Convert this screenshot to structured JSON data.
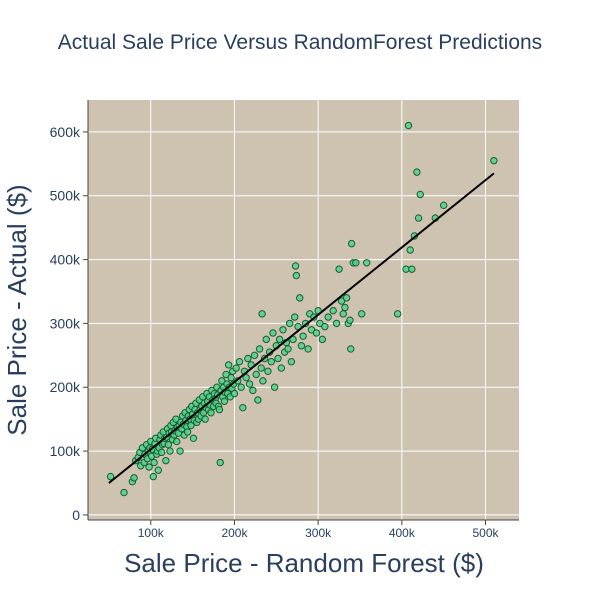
{
  "chart_data": {
    "type": "scatter",
    "title": "Actual Sale Price Versus RandomForest Predictions",
    "xlabel": "Sale Price - Random Forest ($)",
    "ylabel": "Sale Price - Actual ($)",
    "xlim": [
      25000,
      540000
    ],
    "ylim": [
      -8000,
      650000
    ],
    "xticks": [
      {
        "value": 100000,
        "label": "100k"
      },
      {
        "value": 200000,
        "label": "200k"
      },
      {
        "value": 300000,
        "label": "300k"
      },
      {
        "value": 400000,
        "label": "400k"
      },
      {
        "value": 500000,
        "label": "500k"
      }
    ],
    "yticks": [
      {
        "value": 0,
        "label": "0"
      },
      {
        "value": 100000,
        "label": "100k"
      },
      {
        "value": 200000,
        "label": "200k"
      },
      {
        "value": 300000,
        "label": "300k"
      },
      {
        "value": 400000,
        "label": "400k"
      },
      {
        "value": 500000,
        "label": "500k"
      },
      {
        "value": 600000,
        "label": "600k"
      }
    ],
    "grid": true,
    "legend": "none",
    "colors": {
      "plot_bg": "#cec3b1",
      "marker_fill": "#4dd387",
      "marker_edge": "#1c5a35",
      "line": "#000000",
      "grid": "#ffffff",
      "text": "#2a3f5f"
    },
    "series": [
      {
        "type": "scatter",
        "points": [
          [
            52000,
            60000
          ],
          [
            68000,
            35000
          ],
          [
            78000,
            52000
          ],
          [
            80000,
            58000
          ],
          [
            82000,
            85000
          ],
          [
            85000,
            90000
          ],
          [
            87000,
            98000
          ],
          [
            88000,
            77000
          ],
          [
            90000,
            105000
          ],
          [
            92000,
            82000
          ],
          [
            93000,
            95000
          ],
          [
            95000,
            110000
          ],
          [
            96000,
            88000
          ],
          [
            97000,
            100000
          ],
          [
            98000,
            75000
          ],
          [
            99000,
            105000
          ],
          [
            100000,
            115000
          ],
          [
            101000,
            92000
          ],
          [
            102000,
            103000
          ],
          [
            103000,
            60000
          ],
          [
            104000,
            82000
          ],
          [
            105000,
            112000
          ],
          [
            106000,
            120000
          ],
          [
            107000,
            95000
          ],
          [
            108000,
            100000
          ],
          [
            109000,
            70000
          ],
          [
            110000,
            105000
          ],
          [
            111000,
            118000
          ],
          [
            112000,
            125000
          ],
          [
            113000,
            98000
          ],
          [
            114000,
            110000
          ],
          [
            115000,
            130000
          ],
          [
            116000,
            112000
          ],
          [
            117000,
            120000
          ],
          [
            118000,
            85000
          ],
          [
            119000,
            122000
          ],
          [
            120000,
            135000
          ],
          [
            121000,
            110000
          ],
          [
            122000,
            128000
          ],
          [
            123000,
            100000
          ],
          [
            124000,
            140000
          ],
          [
            125000,
            130000
          ],
          [
            126000,
            118000
          ],
          [
            127000,
            145000
          ],
          [
            128000,
            125000
          ],
          [
            129000,
            132000
          ],
          [
            130000,
            150000
          ],
          [
            131000,
            115000
          ],
          [
            132000,
            138000
          ],
          [
            133000,
            128000
          ],
          [
            134000,
            140000
          ],
          [
            135000,
            100000
          ],
          [
            136000,
            145000
          ],
          [
            137000,
            135000
          ],
          [
            138000,
            155000
          ],
          [
            139000,
            142000
          ],
          [
            140000,
            125000
          ],
          [
            141000,
            160000
          ],
          [
            142000,
            148000
          ],
          [
            143000,
            138000
          ],
          [
            144000,
            130000
          ],
          [
            145000,
            155000
          ],
          [
            146000,
            165000
          ],
          [
            147000,
            150000
          ],
          [
            148000,
            140000
          ],
          [
            149000,
            170000
          ],
          [
            150000,
            158000
          ],
          [
            151000,
            120000
          ],
          [
            152000,
            148000
          ],
          [
            153000,
            165000
          ],
          [
            154000,
            175000
          ],
          [
            155000,
            145000
          ],
          [
            156000,
            160000
          ],
          [
            157000,
            150000
          ],
          [
            158000,
            180000
          ],
          [
            159000,
            165000
          ],
          [
            160000,
            155000
          ],
          [
            161000,
            170000
          ],
          [
            162000,
            185000
          ],
          [
            163000,
            160000
          ],
          [
            164000,
            175000
          ],
          [
            165000,
            150000
          ],
          [
            166000,
            168000
          ],
          [
            167000,
            190000
          ],
          [
            168000,
            178000
          ],
          [
            169000,
            165000
          ],
          [
            170000,
            185000
          ],
          [
            171000,
            172000
          ],
          [
            172000,
            160000
          ],
          [
            173000,
            195000
          ],
          [
            174000,
            180000
          ],
          [
            175000,
            170000
          ],
          [
            176000,
            190000
          ],
          [
            177000,
            182000
          ],
          [
            178000,
            175000
          ],
          [
            179000,
            200000
          ],
          [
            180000,
            188000
          ],
          [
            181000,
            170000
          ],
          [
            182000,
            165000
          ],
          [
            183000,
            82000
          ],
          [
            184000,
            195000
          ],
          [
            185000,
            210000
          ],
          [
            186000,
            185000
          ],
          [
            187000,
            200000
          ],
          [
            188000,
            178000
          ],
          [
            189000,
            192000
          ],
          [
            190000,
            220000
          ],
          [
            191000,
            205000
          ],
          [
            192000,
            190000
          ],
          [
            193000,
            235000
          ],
          [
            194000,
            200000
          ],
          [
            195000,
            185000
          ],
          [
            196000,
            215000
          ],
          [
            197000,
            198000
          ],
          [
            198000,
            225000
          ],
          [
            199000,
            205000
          ],
          [
            200000,
            190000
          ],
          [
            202000,
            230000
          ],
          [
            204000,
            210000
          ],
          [
            206000,
            240000
          ],
          [
            208000,
            200000
          ],
          [
            210000,
            168000
          ],
          [
            212000,
            225000
          ],
          [
            214000,
            215000
          ],
          [
            216000,
            245000
          ],
          [
            218000,
            205000
          ],
          [
            220000,
            235000
          ],
          [
            222000,
            195000
          ],
          [
            224000,
            250000
          ],
          [
            226000,
            220000
          ],
          [
            228000,
            180000
          ],
          [
            230000,
            260000
          ],
          [
            232000,
            230000
          ],
          [
            233000,
            315000
          ],
          [
            234000,
            210000
          ],
          [
            236000,
            245000
          ],
          [
            238000,
            275000
          ],
          [
            240000,
            225000
          ],
          [
            242000,
            255000
          ],
          [
            244000,
            240000
          ],
          [
            246000,
            285000
          ],
          [
            248000,
            200000
          ],
          [
            250000,
            265000
          ],
          [
            252000,
            245000
          ],
          [
            254000,
            275000
          ],
          [
            256000,
            230000
          ],
          [
            258000,
            290000
          ],
          [
            260000,
            255000
          ],
          [
            262000,
            270000
          ],
          [
            264000,
            260000
          ],
          [
            266000,
            300000
          ],
          [
            268000,
            240000
          ],
          [
            270000,
            275000
          ],
          [
            272000,
            310000
          ],
          [
            273000,
            390000
          ],
          [
            274000,
            375000
          ],
          [
            276000,
            295000
          ],
          [
            278000,
            340000
          ],
          [
            280000,
            265000
          ],
          [
            282000,
            280000
          ],
          [
            285000,
            300000
          ],
          [
            288000,
            260000
          ],
          [
            290000,
            315000
          ],
          [
            292000,
            290000
          ],
          [
            295000,
            310000
          ],
          [
            298000,
            285000
          ],
          [
            300000,
            320000
          ],
          [
            302000,
            300000
          ],
          [
            305000,
            275000
          ],
          [
            308000,
            295000
          ],
          [
            312000,
            310000
          ],
          [
            318000,
            320000
          ],
          [
            322000,
            300000
          ],
          [
            325000,
            385000
          ],
          [
            328000,
            335000
          ],
          [
            330000,
            315000
          ],
          [
            332000,
            325000
          ],
          [
            334000,
            340000
          ],
          [
            336000,
            300000
          ],
          [
            338000,
            305000
          ],
          [
            339000,
            260000
          ],
          [
            340000,
            425000
          ],
          [
            342000,
            395000
          ],
          [
            345000,
            395000
          ],
          [
            352000,
            315000
          ],
          [
            358000,
            395000
          ],
          [
            395000,
            315000
          ],
          [
            405000,
            385000
          ],
          [
            408000,
            610000
          ],
          [
            410000,
            415000
          ],
          [
            412000,
            385000
          ],
          [
            415000,
            437000
          ],
          [
            418000,
            537000
          ],
          [
            420000,
            465000
          ],
          [
            422000,
            502000
          ],
          [
            440000,
            465000
          ],
          [
            450000,
            485000
          ],
          [
            510000,
            555000
          ]
        ]
      },
      {
        "type": "line",
        "points": [
          [
            50000,
            50000
          ],
          [
            510000,
            535000
          ]
        ]
      }
    ]
  }
}
